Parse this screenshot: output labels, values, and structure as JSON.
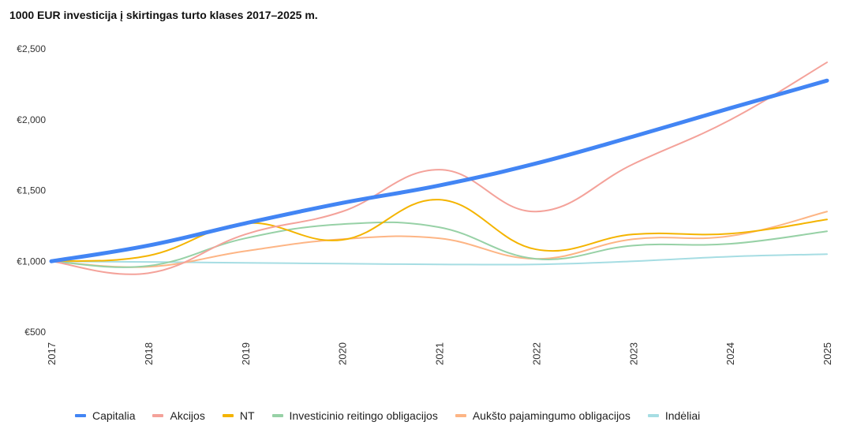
{
  "chart_data": {
    "type": "line",
    "title": "1000 EUR investicija į skirtingas turto klases 2017–2025 m.",
    "xlabel": "",
    "ylabel": "",
    "x": [
      "2017",
      "2018",
      "2019",
      "2020",
      "2021",
      "2022",
      "2023",
      "2024",
      "2025"
    ],
    "ylim": [
      500,
      2500
    ],
    "yticks": [
      500,
      1000,
      1500,
      2000,
      2500
    ],
    "ytick_labels": [
      "€500",
      "€1,000",
      "€1,500",
      "€2,000",
      "€2,500"
    ],
    "grid": false,
    "legend_position": "bottom",
    "smooth": true,
    "series": [
      {
        "name": "Capitalia",
        "color": "#4285F4",
        "emphasis": true,
        "values": [
          1000,
          1111,
          1268,
          1412,
          1535,
          1691,
          1881,
          2081,
          2276
        ]
      },
      {
        "name": "Akcijos",
        "color": "#F4A29A",
        "values": [
          1000,
          916,
          1190,
          1351,
          1647,
          1351,
          1686,
          1998,
          2405
        ]
      },
      {
        "name": "NT",
        "color": "#F4B400",
        "values": [
          1000,
          1039,
          1268,
          1151,
          1435,
          1084,
          1190,
          1195,
          1295
        ]
      },
      {
        "name": "Investicinio reitingo obligacijos",
        "color": "#97D1A6",
        "values": [
          1000,
          967,
          1162,
          1262,
          1240,
          1017,
          1111,
          1123,
          1212
        ]
      },
      {
        "name": "Aukšto pajamingumo obligacijos",
        "color": "#FDB585",
        "values": [
          1000,
          961,
          1072,
          1156,
          1162,
          1017,
          1156,
          1178,
          1351
        ]
      },
      {
        "name": "Indėliai",
        "color": "#A6DDE3",
        "values": [
          1000,
          995,
          989,
          983,
          978,
          978,
          1000,
          1033,
          1050
        ]
      }
    ]
  }
}
